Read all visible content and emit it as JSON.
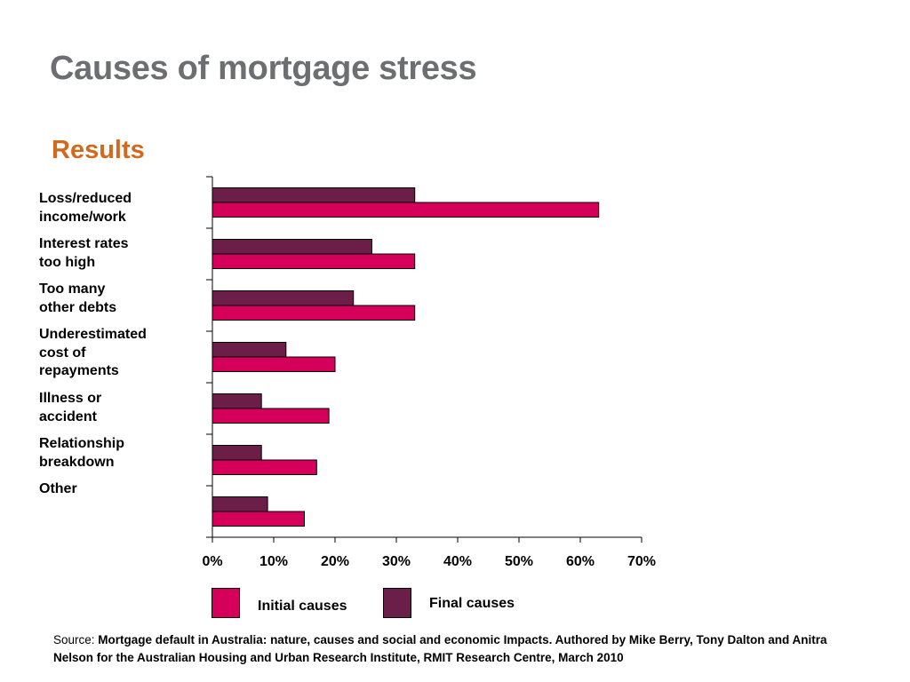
{
  "page": {
    "title": "Causes of mortgage stress",
    "subtitle": "Results"
  },
  "chart_data": {
    "type": "bar",
    "orientation": "horizontal",
    "categories": [
      "Loss/reduced\nincome/work",
      "Interest rates\ntoo high",
      "Too many\nother debts",
      "Underestimated\ncost of\nrepayments",
      "Illness or\naccident",
      "Relationship\nbreakdown",
      "Other"
    ],
    "series": [
      {
        "name": "Final causes",
        "color": "#6b1e48",
        "values": [
          33,
          26,
          23,
          12,
          8,
          8,
          9
        ]
      },
      {
        "name": "Initial causes",
        "color": "#d4005a",
        "values": [
          63,
          33,
          33,
          20,
          19,
          17,
          15
        ]
      }
    ],
    "xlim": [
      0,
      70
    ],
    "xticks": [
      "0%",
      "10%",
      "20%",
      "30%",
      "40%",
      "50%",
      "60%",
      "70%"
    ],
    "legend_position": "bottom",
    "grid": false
  },
  "legend": {
    "initial_label": "Initial causes",
    "final_label": "Final causes",
    "initial_color": "#d4005a",
    "final_color": "#6b1e48"
  },
  "source": {
    "prefix": "Source:",
    "text": "Mortgage default in Australia: nature, causes and social and economic Impacts. Authored by Mike Berry, Tony Dalton and Anitra Nelson for the Australian Housing and Urban Research Institute, RMIT Research Centre, March 2010"
  }
}
